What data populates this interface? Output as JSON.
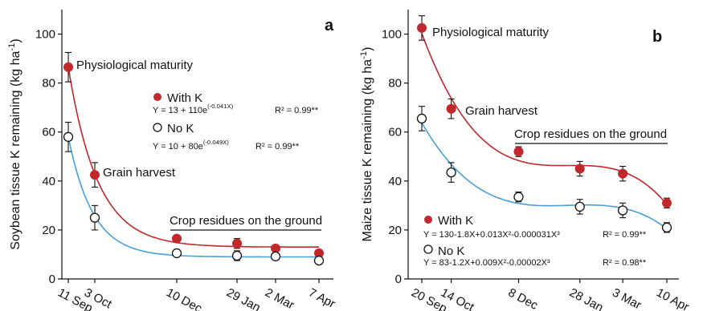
{
  "colors": {
    "with_k": "#c0282b",
    "no_k": "#4a9fd6",
    "axis": "#111111"
  },
  "chart_data": [
    {
      "panel": "a",
      "type": "scatter",
      "ylabel": "Soybean tissue K remaining (kg ha",
      "ylabel_sup": "-1",
      "ylabel_close": ")",
      "ylim": [
        0,
        110
      ],
      "yticks": [
        0,
        20,
        40,
        60,
        80,
        100
      ],
      "x_positions_days": [
        0,
        22,
        90,
        140,
        172,
        208
      ],
      "categories": [
        "11 Sep",
        "3 Oct",
        "10 Dec",
        "29 Jan",
        "2 Mar",
        "7 Apr"
      ],
      "annotations": {
        "first_point": "Physiological maturity",
        "second_point": "Grain harvest",
        "residues": "Crop residues on the ground"
      },
      "series": [
        {
          "name": "With K",
          "marker": "filled",
          "values": [
            86.5,
            42.5,
            16.5,
            14.5,
            12.5,
            10.5
          ],
          "errors": [
            6,
            5,
            1,
            2,
            1,
            1
          ],
          "equation": "Y = 13 + 110e",
          "equation_exp": "(-0.041X)",
          "r2": "R² = 0.99**"
        },
        {
          "name": "No K",
          "marker": "open",
          "values": [
            58,
            25,
            10.5,
            9.5,
            9.2,
            7.5
          ],
          "errors": [
            6,
            5,
            1,
            2,
            1,
            1
          ],
          "equation": "Y = 10 + 80e",
          "equation_exp": "(-0.049X)",
          "r2": "R² = 0.99**"
        }
      ]
    },
    {
      "panel": "b",
      "type": "scatter",
      "ylabel": "Maize tissue K remaining (kg ha",
      "ylabel_sup": "-1",
      "ylabel_close": ")",
      "ylim": [
        0,
        110
      ],
      "yticks": [
        0,
        20,
        40,
        60,
        80,
        100
      ],
      "x_positions_days": [
        0,
        24,
        79,
        129,
        164,
        200
      ],
      "categories": [
        "20 Sep",
        "14 Oct",
        "8 Dec",
        "28 Jan",
        "3 Mar",
        "10 Apr"
      ],
      "annotations": {
        "first_point": "Physiological maturity",
        "second_point": "Grain harvest",
        "residues": "Crop residues on the ground"
      },
      "series": [
        {
          "name": "With K",
          "marker": "filled",
          "values": [
            102.5,
            69.5,
            52,
            45,
            43,
            31
          ],
          "errors": [
            5,
            4,
            2,
            3,
            3,
            2
          ],
          "equation": "Y = 130-1.8X+0.013X²-0.000031X³",
          "r2": "R² = 0.99**"
        },
        {
          "name": "No K",
          "marker": "open",
          "values": [
            65.5,
            43.5,
            33.5,
            29.5,
            28,
            21
          ],
          "errors": [
            5,
            4,
            2,
            3,
            3,
            2
          ],
          "equation": "Y = 83-1.2X+0.009X²-0.00002X³",
          "r2": "R² = 0.98**"
        }
      ]
    }
  ]
}
